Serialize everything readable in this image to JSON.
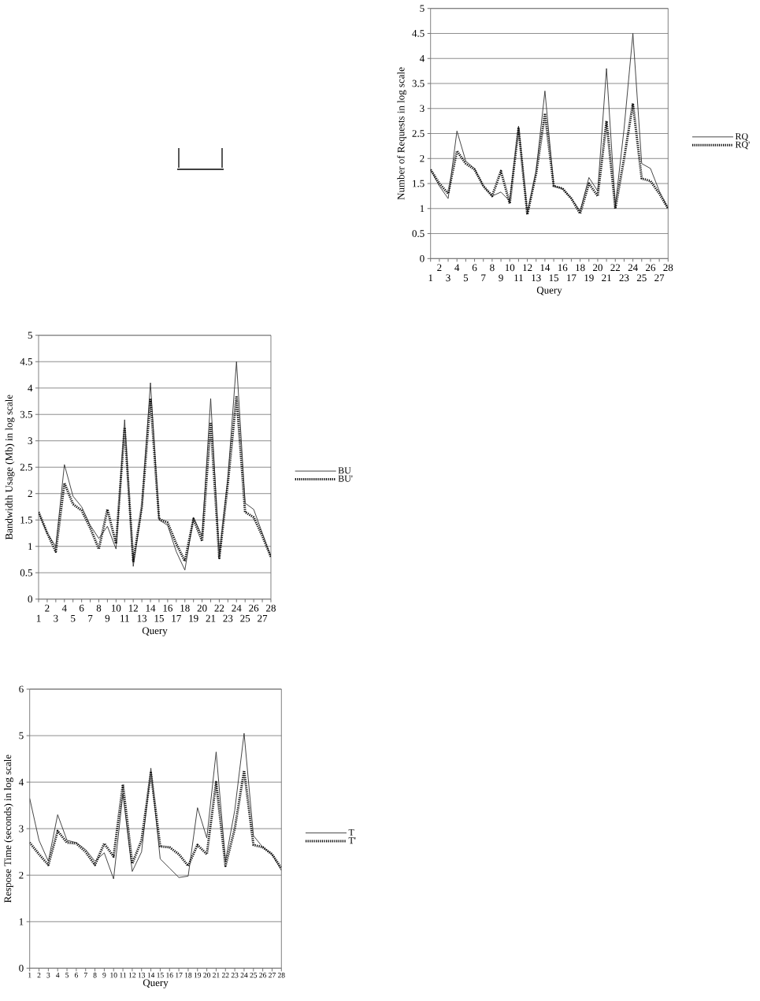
{
  "chart_data": [
    {
      "type": "line",
      "xlabel": "Query",
      "ylabel": "Number of Requests in log scale",
      "categories": [
        "1",
        "2",
        "3",
        "4",
        "5",
        "6",
        "7",
        "8",
        "9",
        "10",
        "11",
        "12",
        "13",
        "14",
        "15",
        "16",
        "17",
        "18",
        "19",
        "20",
        "21",
        "22",
        "23",
        "24",
        "25",
        "26",
        "27",
        "28"
      ],
      "series": [
        {
          "name": "RQ",
          "color": "#333333",
          "line_style": "solid",
          "values": [
            1.78,
            1.45,
            1.2,
            2.55,
            1.95,
            1.8,
            1.45,
            1.25,
            1.33,
            1.15,
            2.65,
            0.9,
            1.75,
            3.35,
            1.45,
            1.4,
            1.2,
            0.95,
            1.62,
            1.35,
            3.8,
            1.05,
            2.6,
            4.5,
            1.9,
            1.8,
            1.35,
            1.0
          ]
        },
        {
          "name": "RQ'",
          "color": "#111111",
          "line_style": "dotted",
          "values": [
            1.78,
            1.5,
            1.3,
            2.15,
            1.9,
            1.78,
            1.45,
            1.25,
            1.75,
            1.1,
            2.6,
            0.88,
            1.7,
            2.9,
            1.45,
            1.4,
            1.2,
            0.9,
            1.5,
            1.25,
            2.75,
            1.0,
            2.0,
            3.1,
            1.6,
            1.55,
            1.3,
            1.0
          ]
        }
      ],
      "ylim": [
        0,
        5
      ],
      "yticks": [
        0,
        0.5,
        1,
        1.5,
        2,
        2.5,
        3,
        3.5,
        4,
        4.5,
        5
      ],
      "grid": "y",
      "legend": "right"
    },
    {
      "type": "line",
      "xlabel": "Query",
      "ylabel": "Bandwidth Usage (Mb) in log scale",
      "categories": [
        "1",
        "2",
        "3",
        "4",
        "5",
        "6",
        "7",
        "8",
        "9",
        "10",
        "11",
        "12",
        "13",
        "14",
        "15",
        "16",
        "17",
        "18",
        "19",
        "20",
        "21",
        "22",
        "23",
        "24",
        "25",
        "26",
        "27",
        "28"
      ],
      "series": [
        {
          "name": "BU",
          "color": "#333333",
          "line_style": "solid",
          "values": [
            1.65,
            1.25,
            1.0,
            2.55,
            1.95,
            1.75,
            1.4,
            1.15,
            1.38,
            0.95,
            3.4,
            0.62,
            1.75,
            4.1,
            1.5,
            1.4,
            0.9,
            0.55,
            1.55,
            1.2,
            3.8,
            0.8,
            2.3,
            4.5,
            1.82,
            1.7,
            1.25,
            0.8
          ]
        },
        {
          "name": "BU'",
          "color": "#111111",
          "line_style": "dotted",
          "values": [
            1.65,
            1.25,
            0.9,
            2.2,
            1.8,
            1.68,
            1.35,
            0.95,
            1.7,
            1.05,
            3.25,
            0.72,
            1.75,
            3.8,
            1.52,
            1.45,
            1.05,
            0.72,
            1.52,
            1.1,
            3.35,
            0.78,
            2.2,
            3.85,
            1.65,
            1.55,
            1.2,
            0.8
          ]
        }
      ],
      "ylim": [
        0,
        5
      ],
      "yticks": [
        0,
        0.5,
        1,
        1.5,
        2,
        2.5,
        3,
        3.5,
        4,
        4.5,
        5
      ],
      "grid": "y",
      "legend": "right"
    },
    {
      "type": "line",
      "xlabel": "Query",
      "ylabel": "Respose Time (seconds) in log scale",
      "categories": [
        "1",
        "2",
        "3",
        "4",
        "5",
        "6",
        "7",
        "8",
        "9",
        "10",
        "11",
        "12",
        "13",
        "14",
        "15",
        "16",
        "17",
        "18",
        "19",
        "20",
        "21",
        "22",
        "23",
        "24",
        "25",
        "26",
        "27",
        "28"
      ],
      "series": [
        {
          "name": "T",
          "color": "#333333",
          "line_style": "solid",
          "values": [
            3.65,
            2.75,
            2.3,
            3.3,
            2.75,
            2.7,
            2.55,
            2.3,
            2.48,
            1.92,
            3.75,
            2.08,
            2.5,
            4.3,
            2.35,
            2.15,
            1.95,
            1.98,
            3.45,
            2.8,
            4.65,
            2.3,
            3.4,
            5.05,
            2.85,
            2.6,
            2.45,
            2.1
          ]
        },
        {
          "name": "T'",
          "color": "#111111",
          "line_style": "dotted",
          "values": [
            2.7,
            2.45,
            2.22,
            2.95,
            2.7,
            2.68,
            2.5,
            2.22,
            2.68,
            2.4,
            3.95,
            2.25,
            2.75,
            4.2,
            2.62,
            2.6,
            2.45,
            2.2,
            2.65,
            2.45,
            4.0,
            2.2,
            3.0,
            4.25,
            2.65,
            2.6,
            2.45,
            2.15
          ]
        }
      ],
      "ylim": [
        0,
        6
      ],
      "yticks": [
        0,
        1,
        2,
        3,
        4,
        5,
        6
      ],
      "grid": "y",
      "legend": "right"
    }
  ]
}
